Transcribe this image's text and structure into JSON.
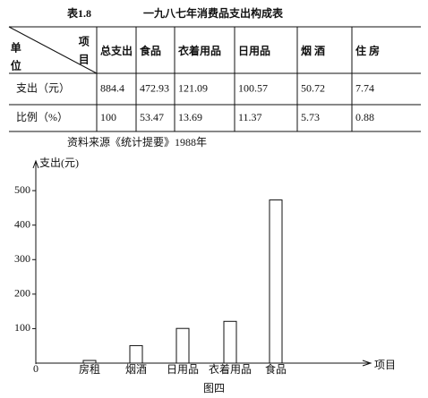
{
  "table": {
    "number": "表1.8",
    "title": "一九八七年消费品支出构成表",
    "corner": {
      "left": "单位",
      "right": "项目"
    },
    "columns": [
      "总支出",
      "食品",
      "衣着用品",
      "日用品",
      "烟 酒",
      "住 房"
    ],
    "rows": [
      [
        "支出（元）",
        "884.4",
        "472.93",
        "121.09",
        "100.57",
        "50.72",
        "7.74"
      ],
      [
        "比例（%）",
        "100",
        "53.47",
        "13.69",
        "11.37",
        "5.73",
        "0.88"
      ]
    ],
    "source": "资料来源《统计提要》1988年"
  },
  "chart_data": {
    "type": "bar",
    "y_label": "支出(元)",
    "x_label": "项目",
    "caption": "图四",
    "categories": [
      "房租",
      "烟酒",
      "日用品",
      "衣着用品",
      "食品"
    ],
    "values": [
      7.74,
      50.72,
      100.57,
      121.09,
      472.93
    ],
    "color": "#ffffff",
    "ylim": [
      0,
      560
    ],
    "yticks": [
      0,
      100,
      200,
      300,
      400,
      500
    ]
  }
}
